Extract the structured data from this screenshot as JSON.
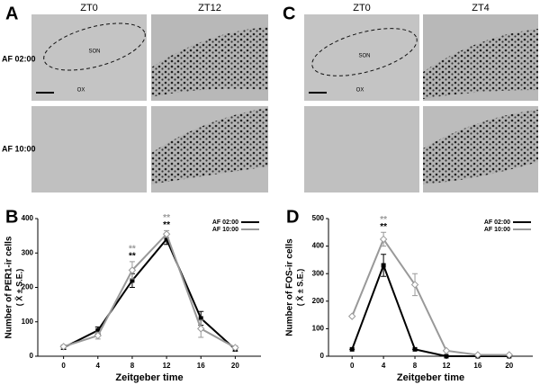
{
  "panels": [
    {
      "letter": "A",
      "columns": [
        "ZT0",
        "ZT12"
      ],
      "rows": [
        "AF 02:00",
        "AF 10:00"
      ],
      "labels": [
        "SON",
        "OX"
      ]
    },
    {
      "letter": "C",
      "columns": [
        "ZT0",
        "ZT4"
      ],
      "labels": [
        "SON",
        "OX"
      ]
    }
  ],
  "chart_data": [
    {
      "type": "line",
      "panel": "B",
      "ylabel": "Number of PER1-ir cells",
      "ylabel_sub": "( X̄ ± S.E.)",
      "xlabel": "Zeitgeber time",
      "x": [
        0,
        4,
        8,
        12,
        16,
        20
      ],
      "xlim": [
        -3,
        23
      ],
      "xticks": [
        0,
        4,
        8,
        12,
        16,
        20
      ],
      "ylim": [
        0,
        400
      ],
      "yticks": [
        0,
        100,
        200,
        300,
        400
      ],
      "legend": "upper right",
      "series": [
        {
          "name": "AF 02:00",
          "color": "#000000",
          "marker": "square",
          "values": [
            25,
            75,
            220,
            340,
            110,
            20
          ],
          "errors": [
            5,
            10,
            20,
            15,
            20,
            5
          ]
        },
        {
          "name": "AF 10:00",
          "color": "#999999",
          "marker": "diamond",
          "values": [
            28,
            60,
            250,
            355,
            80,
            25
          ],
          "errors": [
            5,
            10,
            25,
            10,
            25,
            5
          ]
        }
      ],
      "annotations": [
        {
          "text": "**",
          "x": 8,
          "color": "#999999"
        },
        {
          "text": "**",
          "x": 8,
          "color": "#000000"
        },
        {
          "text": "**",
          "x": 12,
          "color": "#999999"
        },
        {
          "text": "**",
          "x": 12,
          "color": "#000000"
        }
      ]
    },
    {
      "type": "line",
      "panel": "D",
      "ylabel": "Number of FOS-ir cells",
      "ylabel_sub": "( X̄ ± S.E.)",
      "xlabel": "Zeitgeber time",
      "x": [
        0,
        4,
        8,
        12,
        16,
        20
      ],
      "xlim": [
        -3,
        23
      ],
      "xticks": [
        0,
        4,
        8,
        12,
        16,
        20
      ],
      "ylim": [
        0,
        500
      ],
      "yticks": [
        0,
        100,
        200,
        300,
        400,
        500
      ],
      "legend": "upper right",
      "series": [
        {
          "name": "AF 02:00",
          "color": "#000000",
          "marker": "square",
          "values": [
            25,
            330,
            25,
            0,
            0,
            0
          ],
          "errors": [
            0,
            40,
            0,
            0,
            0,
            0
          ]
        },
        {
          "name": "AF 10:00",
          "color": "#999999",
          "marker": "diamond",
          "values": [
            145,
            425,
            260,
            20,
            5,
            5
          ],
          "errors": [
            0,
            25,
            40,
            0,
            0,
            0
          ]
        }
      ],
      "annotations": [
        {
          "text": "**",
          "x": 4,
          "color": "#999999"
        },
        {
          "text": "**",
          "x": 4,
          "color": "#000000"
        }
      ]
    }
  ]
}
